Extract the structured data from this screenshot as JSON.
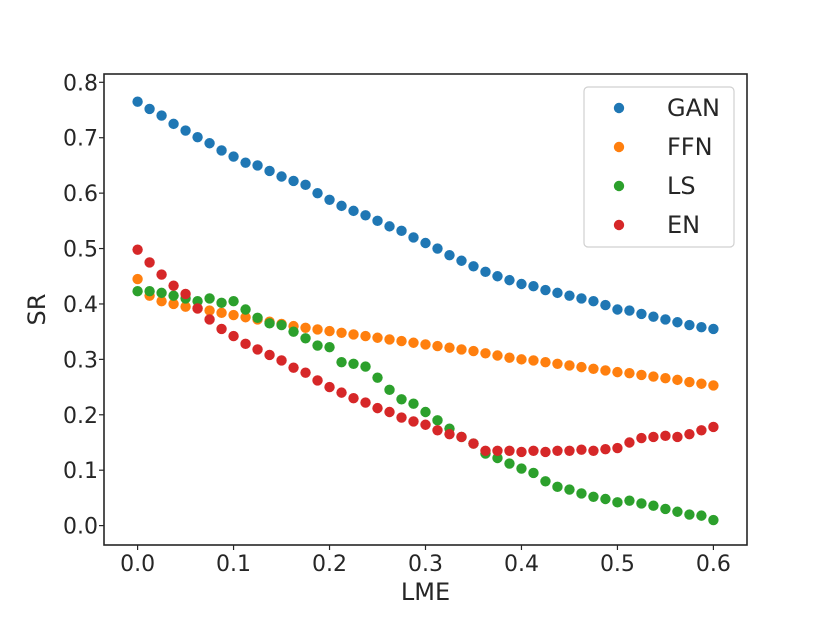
{
  "chart_data": {
    "type": "scatter",
    "title": "",
    "xlabel": "LME",
    "ylabel": "SR",
    "xlim": [
      -0.035,
      0.635
    ],
    "ylim": [
      -0.035,
      0.815
    ],
    "grid": false,
    "legend_position": "top-right",
    "xticks": [
      0.0,
      0.1,
      0.2,
      0.3,
      0.4,
      0.5,
      0.6
    ],
    "xtick_labels": [
      "0.0",
      "0.1",
      "0.2",
      "0.3",
      "0.4",
      "0.5",
      "0.6"
    ],
    "yticks": [
      0.0,
      0.1,
      0.2,
      0.3,
      0.4,
      0.5,
      0.6,
      0.7,
      0.8
    ],
    "ytick_labels": [
      "0.0",
      "0.1",
      "0.2",
      "0.3",
      "0.4",
      "0.5",
      "0.6",
      "0.7",
      "0.8"
    ],
    "x": [
      0.0,
      0.0125,
      0.025,
      0.0375,
      0.05,
      0.0625,
      0.075,
      0.0875,
      0.1,
      0.1125,
      0.125,
      0.1375,
      0.15,
      0.1625,
      0.175,
      0.1875,
      0.2,
      0.2125,
      0.225,
      0.2375,
      0.25,
      0.2625,
      0.275,
      0.2875,
      0.3,
      0.3125,
      0.325,
      0.3375,
      0.35,
      0.3625,
      0.375,
      0.3875,
      0.4,
      0.4125,
      0.425,
      0.4375,
      0.45,
      0.4625,
      0.475,
      0.4875,
      0.5,
      0.5125,
      0.525,
      0.5375,
      0.55,
      0.5625,
      0.575,
      0.5875,
      0.6
    ],
    "series": [
      {
        "name": "GAN",
        "color": "#1f77b4",
        "values": [
          0.765,
          0.752,
          0.74,
          0.725,
          0.713,
          0.701,
          0.69,
          0.677,
          0.666,
          0.655,
          0.65,
          0.64,
          0.63,
          0.622,
          0.615,
          0.6,
          0.588,
          0.577,
          0.568,
          0.56,
          0.55,
          0.54,
          0.532,
          0.52,
          0.51,
          0.5,
          0.488,
          0.478,
          0.468,
          0.458,
          0.45,
          0.443,
          0.436,
          0.432,
          0.425,
          0.42,
          0.415,
          0.41,
          0.405,
          0.398,
          0.39,
          0.388,
          0.382,
          0.377,
          0.372,
          0.367,
          0.362,
          0.358,
          0.355
        ]
      },
      {
        "name": "FFN",
        "color": "#ff7f0e",
        "values": [
          0.445,
          0.415,
          0.405,
          0.4,
          0.395,
          0.392,
          0.388,
          0.384,
          0.38,
          0.376,
          0.372,
          0.368,
          0.364,
          0.36,
          0.357,
          0.354,
          0.351,
          0.348,
          0.345,
          0.342,
          0.339,
          0.336,
          0.333,
          0.33,
          0.327,
          0.324,
          0.321,
          0.318,
          0.315,
          0.311,
          0.307,
          0.303,
          0.3,
          0.298,
          0.295,
          0.292,
          0.289,
          0.286,
          0.283,
          0.28,
          0.277,
          0.275,
          0.272,
          0.269,
          0.266,
          0.263,
          0.259,
          0.256,
          0.253
        ]
      },
      {
        "name": "LS",
        "color": "#2ca02c",
        "values": [
          0.423,
          0.423,
          0.42,
          0.415,
          0.41,
          0.405,
          0.41,
          0.402,
          0.405,
          0.39,
          0.375,
          0.365,
          0.362,
          0.35,
          0.338,
          0.325,
          0.322,
          0.295,
          0.292,
          0.287,
          0.267,
          0.245,
          0.228,
          0.22,
          0.205,
          0.19,
          0.175,
          0.16,
          0.148,
          0.13,
          0.122,
          0.112,
          0.103,
          0.095,
          0.08,
          0.07,
          0.065,
          0.058,
          0.052,
          0.048,
          0.042,
          0.045,
          0.04,
          0.036,
          0.03,
          0.025,
          0.02,
          0.018,
          0.01
        ]
      },
      {
        "name": "EN",
        "color": "#d62728",
        "values": [
          0.498,
          0.475,
          0.453,
          0.433,
          0.418,
          0.392,
          0.372,
          0.355,
          0.342,
          0.328,
          0.318,
          0.308,
          0.298,
          0.285,
          0.276,
          0.262,
          0.25,
          0.24,
          0.23,
          0.222,
          0.212,
          0.205,
          0.195,
          0.188,
          0.182,
          0.172,
          0.165,
          0.16,
          0.148,
          0.135,
          0.135,
          0.135,
          0.133,
          0.135,
          0.133,
          0.135,
          0.135,
          0.137,
          0.135,
          0.138,
          0.14,
          0.15,
          0.158,
          0.16,
          0.162,
          0.16,
          0.165,
          0.172,
          0.178
        ]
      }
    ]
  }
}
